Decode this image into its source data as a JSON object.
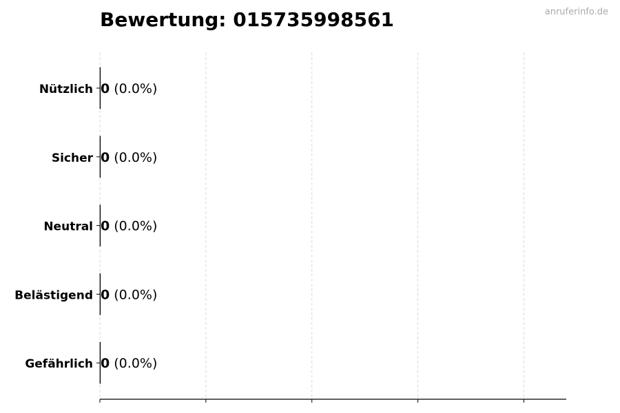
{
  "watermark": "anruferinfo.de",
  "chart_data": {
    "type": "bar",
    "orientation": "horizontal",
    "title": "Bewertung: 015735998561",
    "xlabel": "",
    "ylabel": "",
    "categories": [
      "Nützlich",
      "Sicher",
      "Neutral",
      "Belästigend",
      "Gefährlich"
    ],
    "values": [
      0,
      0,
      0,
      0,
      0
    ],
    "percents": [
      "0.0%",
      "0.0%",
      "0.0%",
      "0.0%",
      "0.0%"
    ],
    "xlim": [
      0,
      4.4
    ],
    "xticks": [
      0,
      1,
      2,
      3,
      4
    ],
    "xtick_labels_shown": false,
    "grid": "vertical dashed",
    "legend": "none",
    "colors": {
      "bar_edge": "#000000",
      "grid": "#d9d9d9",
      "text": "#000000"
    }
  }
}
